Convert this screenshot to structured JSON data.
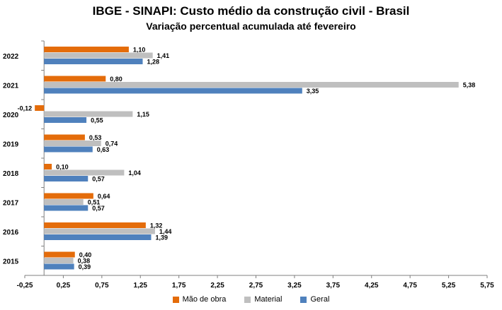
{
  "title": "IBGE - SINAPI: Custo médio da construção civil - Brasil",
  "subtitle": "Variação percentual acumulada até fevereiro",
  "chart_data": {
    "type": "bar",
    "orientation": "horizontal",
    "categories": [
      "2022",
      "2021",
      "2020",
      "2019",
      "2018",
      "2017",
      "2016",
      "2015"
    ],
    "series": [
      {
        "name": "Mão de obra",
        "color": "#E46C0A",
        "values": [
          1.1,
          0.8,
          -0.12,
          0.53,
          0.1,
          0.64,
          1.32,
          0.4
        ],
        "labels": [
          "1,10",
          "0,80",
          "-0,12",
          "0,53",
          "0,10",
          "0,64",
          "1,32",
          "0,40"
        ]
      },
      {
        "name": "Material",
        "color": "#BFBFBF",
        "values": [
          1.41,
          5.38,
          1.15,
          0.74,
          1.04,
          0.51,
          1.44,
          0.38
        ],
        "labels": [
          "1,41",
          "5,38",
          "1,15",
          "0,74",
          "1,04",
          "0,51",
          "1,44",
          "0,38"
        ]
      },
      {
        "name": "Geral",
        "color": "#4F81BD",
        "values": [
          1.28,
          3.35,
          0.55,
          0.63,
          0.57,
          0.57,
          1.39,
          0.39
        ],
        "labels": [
          "1,28",
          "3,35",
          "0,55",
          "0,63",
          "0,57",
          "0,57",
          "1,39",
          "0,39"
        ]
      }
    ],
    "xlim": [
      -0.25,
      5.75
    ],
    "xticks": [
      -0.25,
      0.25,
      0.75,
      1.25,
      1.75,
      2.25,
      2.75,
      3.25,
      3.75,
      4.25,
      4.75,
      5.25,
      5.75
    ],
    "xtick_labels": [
      "-0,25",
      "0,25",
      "0,75",
      "1,25",
      "1,75",
      "2,25",
      "2,75",
      "3,25",
      "3,75",
      "4,25",
      "4,75",
      "5,25",
      "5,75"
    ],
    "grid": false,
    "legend": "bottom"
  }
}
